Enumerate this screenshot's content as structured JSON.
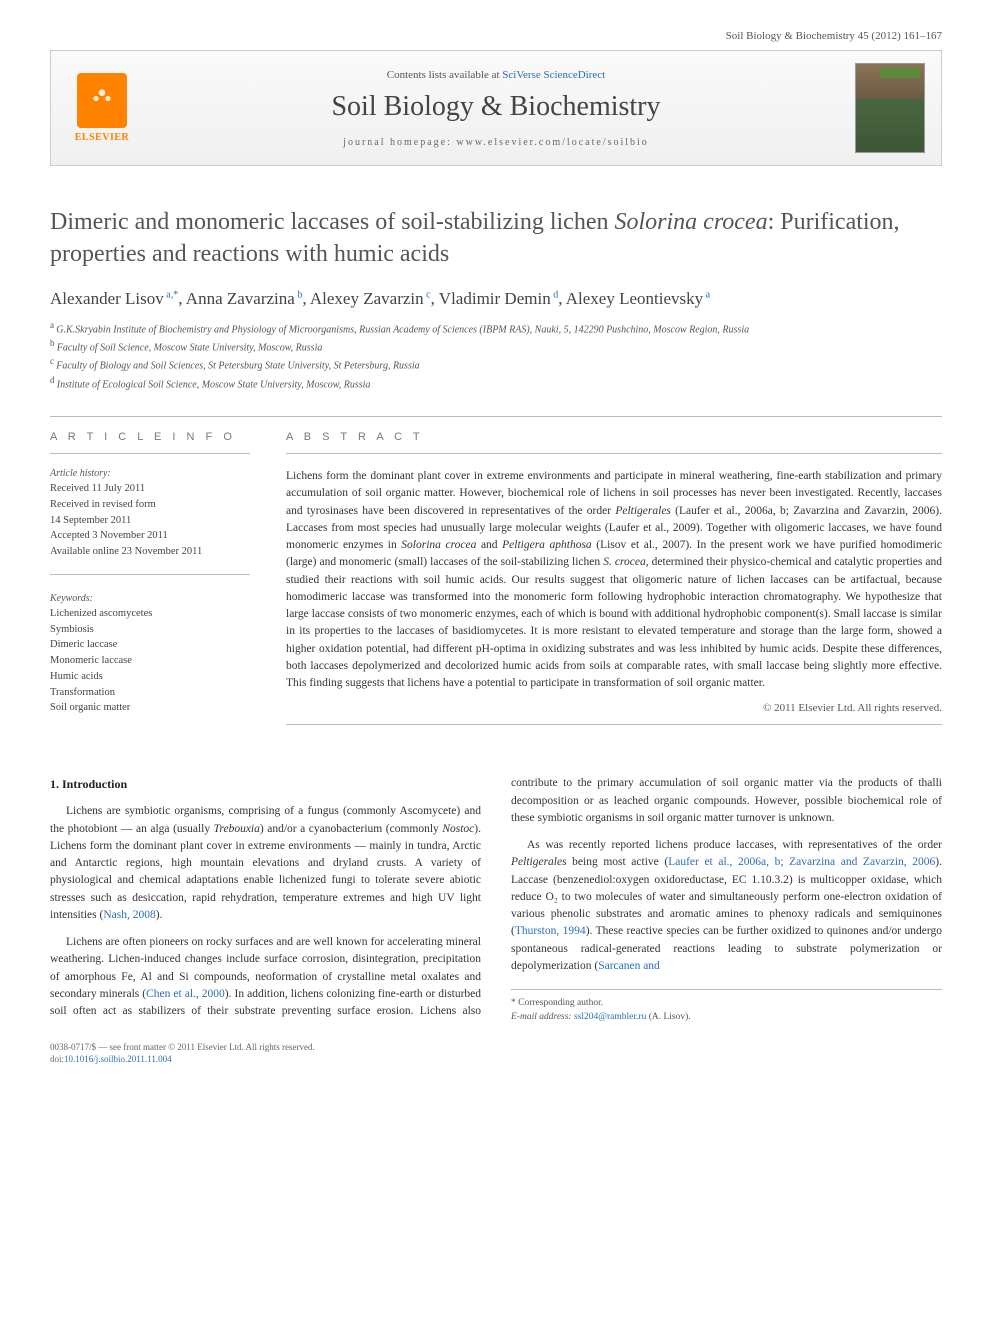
{
  "header": {
    "citation": "Soil Biology & Biochemistry 45 (2012) 161–167"
  },
  "banner": {
    "elsevier_label": "ELSEVIER",
    "contents_prefix": "Contents lists available at ",
    "contents_link": "SciVerse ScienceDirect",
    "journal_name": "Soil Biology & Biochemistry",
    "homepage_prefix": "journal homepage: ",
    "homepage_url": "www.elsevier.com/locate/soilbio"
  },
  "title": {
    "line1": "Dimeric and monomeric laccases of soil-stabilizing lichen ",
    "species": "Solorina crocea",
    "line2": ": Purification, properties and reactions with humic acids"
  },
  "authors": [
    {
      "name": "Alexander Lisov",
      "sup": "a,*"
    },
    {
      "name": "Anna Zavarzina",
      "sup": "b"
    },
    {
      "name": "Alexey Zavarzin",
      "sup": "c"
    },
    {
      "name": "Vladimir Demin",
      "sup": "d"
    },
    {
      "name": "Alexey Leontievsky",
      "sup": "a"
    }
  ],
  "affiliations": [
    {
      "sup": "a",
      "text": "G.K.Skryabin Institute of Biochemistry and Physiology of Microorganisms, Russian Academy of Sciences (IBPM RAS), Nauki, 5, 142290 Pushchino, Moscow Region, Russia"
    },
    {
      "sup": "b",
      "text": "Faculty of Soil Science, Moscow State University, Moscow, Russia"
    },
    {
      "sup": "c",
      "text": "Faculty of Biology and Soil Sciences, St Petersburg State University, St Petersburg, Russia"
    },
    {
      "sup": "d",
      "text": "Institute of Ecological Soil Science, Moscow State University, Moscow, Russia"
    }
  ],
  "article_info": {
    "heading": "A R T I C L E   I N F O",
    "history_label": "Article history:",
    "history": [
      "Received 11 July 2011",
      "Received in revised form",
      "14 September 2011",
      "Accepted 3 November 2011",
      "Available online 23 November 2011"
    ],
    "keywords_label": "Keywords:",
    "keywords": [
      "Lichenized ascomycetes",
      "Symbiosis",
      "Dimeric laccase",
      "Monomeric laccase",
      "Humic acids",
      "Transformation",
      "Soil organic matter"
    ]
  },
  "abstract": {
    "heading": "A B S T R A C T",
    "text_parts": [
      "Lichens form the dominant plant cover in extreme environments and participate in mineral weathering, fine-earth stabilization and primary accumulation of soil organic matter. However, biochemical role of lichens in soil processes has never been investigated. Recently, laccases and tyrosinases have been discovered in representatives of the order ",
      {
        "i": "Peltigerales"
      },
      " (Laufer et al., 2006a, b; Zavarzina and Zavarzin, 2006). Laccases from most species had unusually large molecular weights (Laufer et al., 2009). Together with oligomeric laccases, we have found monomeric enzymes in ",
      {
        "i": "Solorina crocea"
      },
      " and ",
      {
        "i": "Peltigera aphthosa"
      },
      " (Lisov et al., 2007). In the present work we have purified homodimeric (large) and monomeric (small) laccases of the soil-stabilizing lichen ",
      {
        "i": "S. crocea"
      },
      ", determined their physico-chemical and catalytic properties and studied their reactions with soil humic acids. Our results suggest that oligomeric nature of lichen laccases can be artifactual, because homodimeric laccase was transformed into the monomeric form following hydrophobic interaction chromatography. We hypothesize that large laccase consists of two monomeric enzymes, each of which is bound with additional hydrophobic component(s). Small laccase is similar in its properties to the laccases of basidiomycetes. It is more resistant to elevated temperature and storage than the large form, showed a higher oxidation potential, had different pH-optima in oxidizing substrates and was less inhibited by humic acids. Despite these differences, both laccases depolymerized and decolorized humic acids from soils at comparable rates, with small laccase being slightly more effective. This finding suggests that lichens have a potential to participate in transformation of soil organic matter."
    ],
    "copyright": "© 2011 Elsevier Ltd. All rights reserved."
  },
  "body": {
    "section_heading": "1. Introduction",
    "paragraphs": [
      [
        "Lichens are symbiotic organisms, comprising of a fungus (commonly Ascomycete) and the photobiont — an alga (usually ",
        {
          "i": "Trebouxia"
        },
        ") and/or a cyanobacterium (commonly ",
        {
          "i": "Nostoc"
        },
        "). Lichens form the dominant plant cover in extreme environments — mainly in tundra, Arctic and Antarctic regions, high mountain elevations and dryland crusts. A variety of physiological and chemical adaptations enable lichenized fungi to tolerate severe abiotic stresses such as desiccation, rapid rehydration, temperature extremes and high UV light intensities (",
        {
          "r": "Nash, 2008"
        },
        ")."
      ],
      [
        "Lichens are often pioneers on rocky surfaces and are well known for accelerating mineral weathering. Lichen-induced changes include surface corrosion, disintegration, precipitation of amorphous Fe, Al and Si compounds, neoformation of crystalline metal oxalates and secondary minerals (",
        {
          "r": "Chen et al., 2000"
        },
        "). In addition, lichens colonizing fine-earth or disturbed soil often act as stabilizers of their substrate preventing surface erosion. Lichens also contribute to the primary accumulation of soil organic matter via the products of thalli decomposition or as leached organic compounds. However, possible biochemical role of these symbiotic organisms in soil organic matter turnover is unknown."
      ],
      [
        "As was recently reported lichens produce laccases, with representatives of the order ",
        {
          "i": "Peltigerales"
        },
        " being most active (",
        {
          "r": "Laufer et al., 2006a, b; Zavarzina and Zavarzin, 2006"
        },
        "). Laccase (benzenediol:oxygen oxidoreductase, EC 1.10.3.2) is multicopper oxidase, which reduce O₂ to two molecules of water and simultaneously perform one-electron oxidation of various phenolic substrates and aromatic amines to phenoxy radicals and semiquinones (",
        {
          "r": "Thurston, 1994"
        },
        "). These reactive species can be further oxidized to quinones and/or undergo spontaneous radical-generated reactions leading to substrate polymerization or depolymerization (",
        {
          "r": "Sarcanen and"
        }
      ]
    ]
  },
  "footnote": {
    "corresponding": "* Corresponding author.",
    "email_label": "E-mail address: ",
    "email": "ssl204@rambler.ru",
    "email_paren": " (A. Lisov)."
  },
  "footer": {
    "line1": "0038-0717/$ — see front matter © 2011 Elsevier Ltd. All rights reserved.",
    "doi_label": "doi:",
    "doi": "10.1016/j.soilbio.2011.11.004"
  }
}
